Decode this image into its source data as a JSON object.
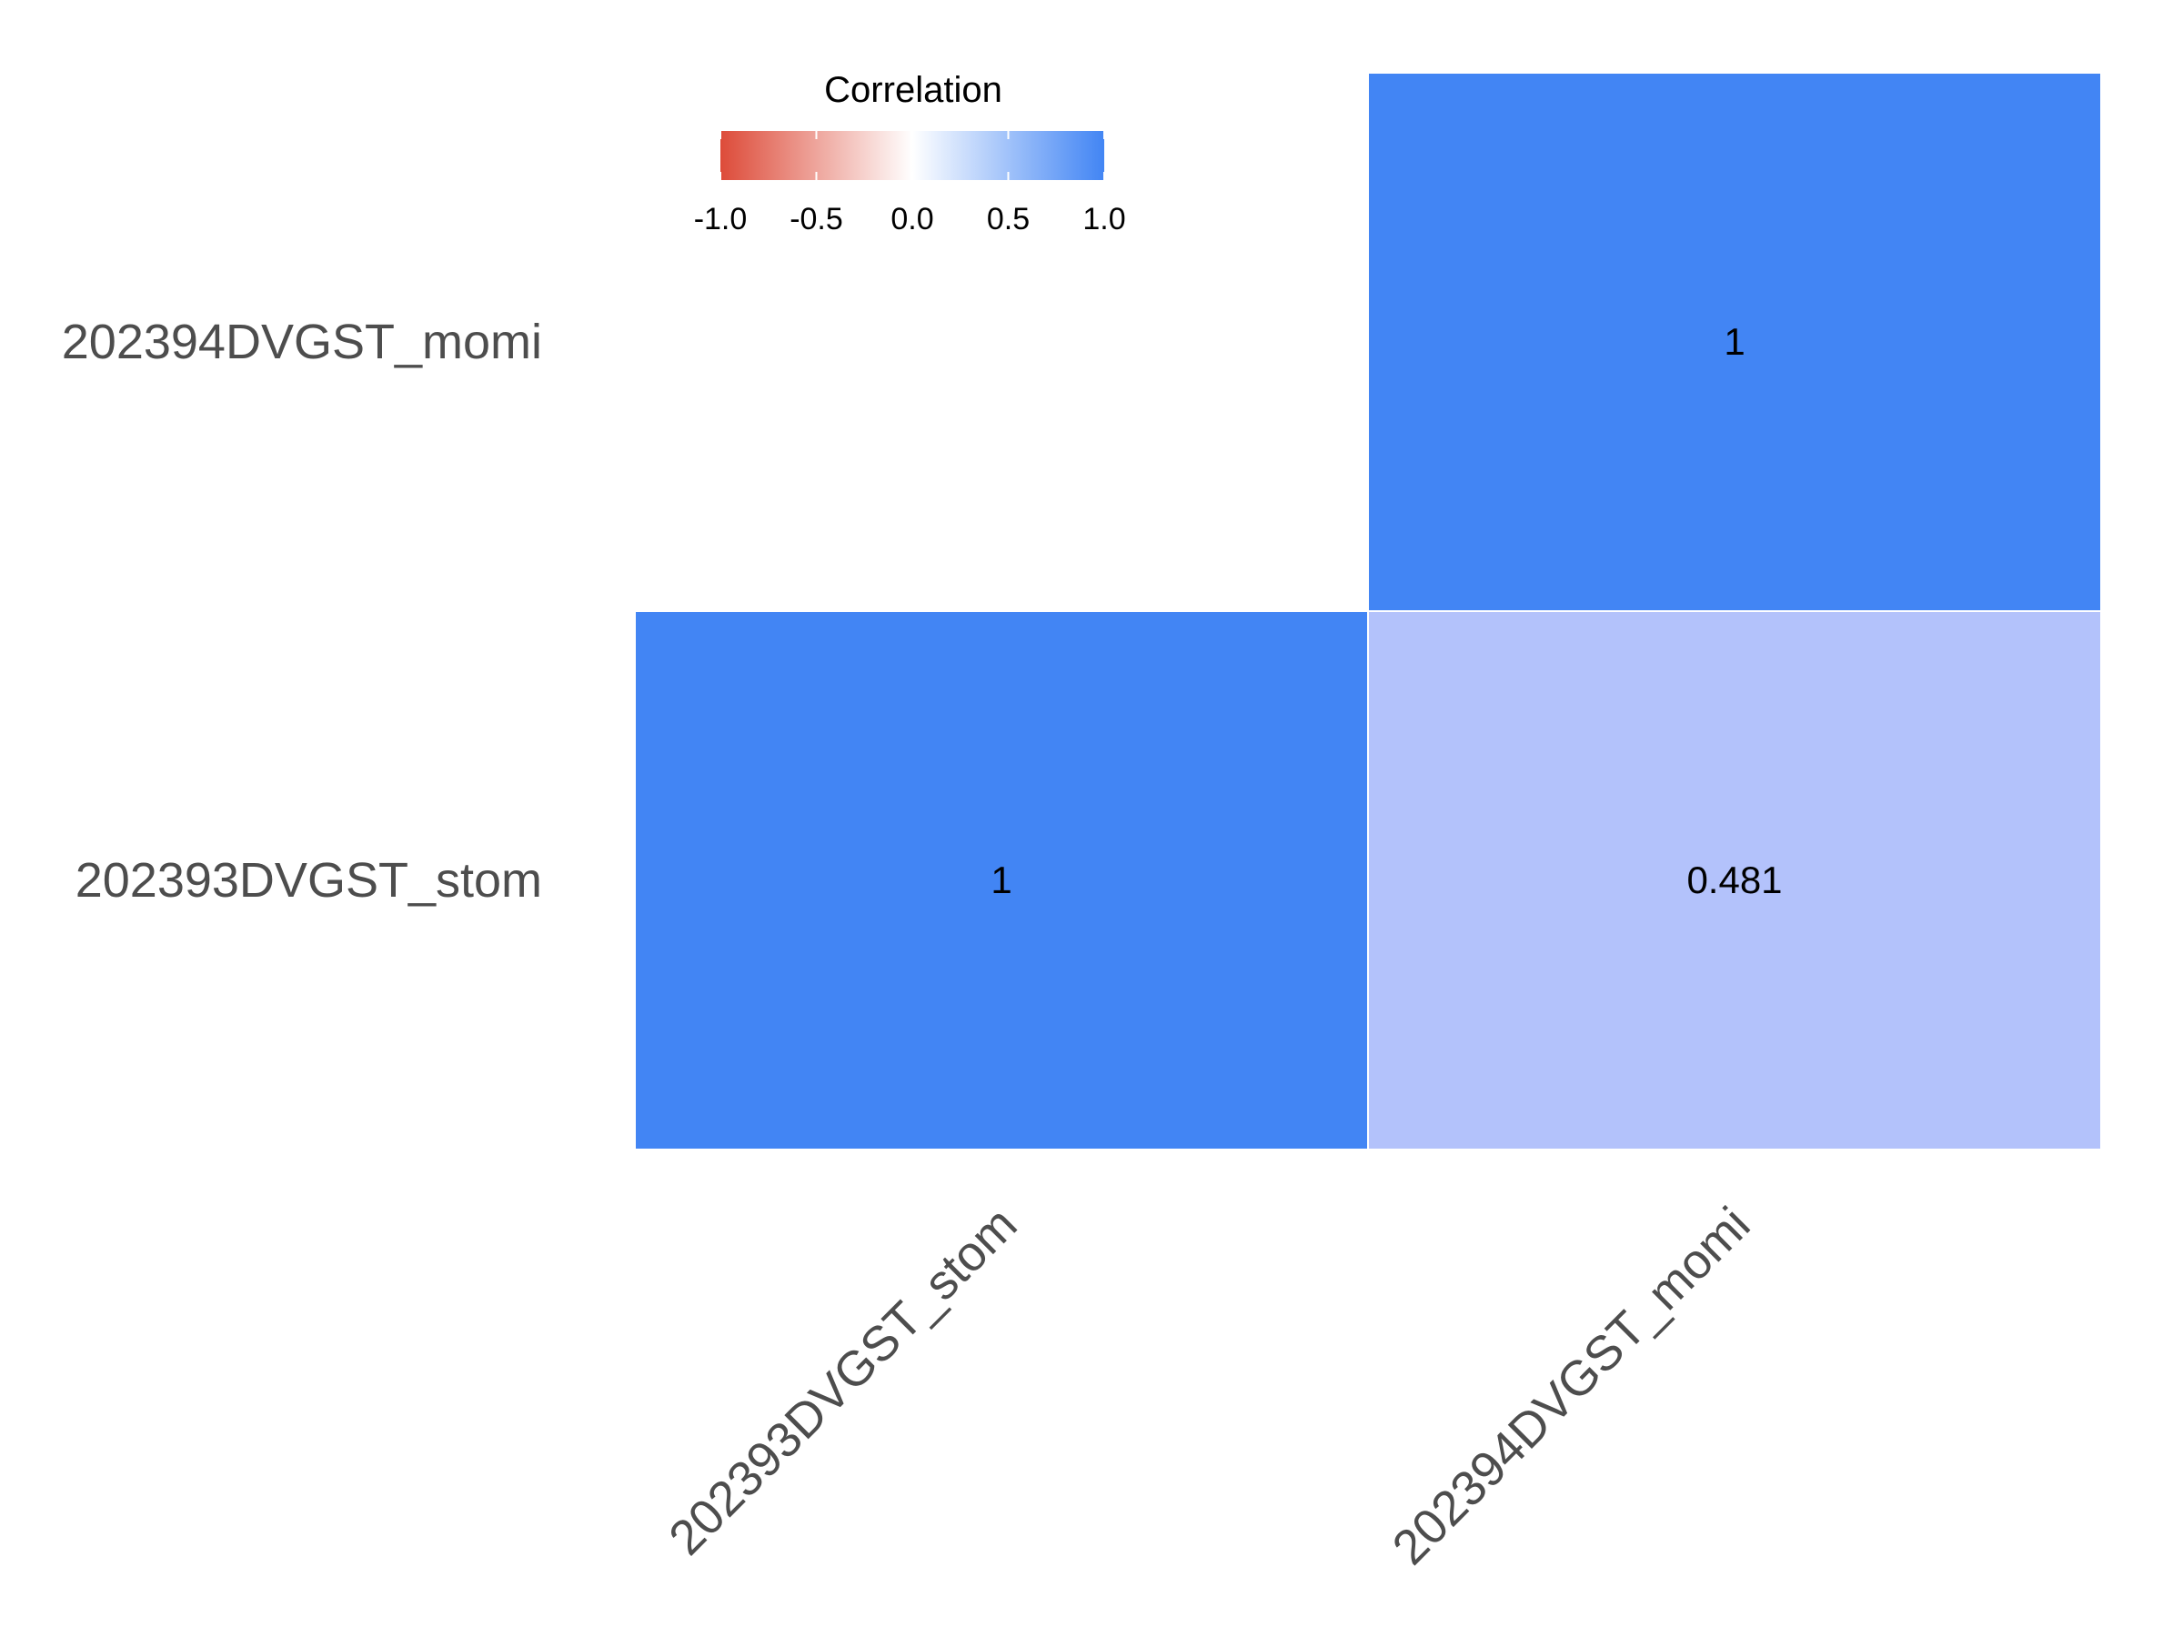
{
  "chart_data": {
    "type": "heatmap",
    "x_categories": [
      "202393DVGST_stom",
      "202394DVGST_momi"
    ],
    "y_categories": [
      "202394DVGST_momi",
      "202393DVGST_stom"
    ],
    "cells": [
      {
        "x": "202394DVGST_momi",
        "y": "202394DVGST_momi",
        "value": 1,
        "label": "1"
      },
      {
        "x": "202393DVGST_stom",
        "y": "202393DVGST_stom",
        "value": 1,
        "label": "1"
      },
      {
        "x": "202394DVGST_momi",
        "y": "202393DVGST_stom",
        "value": 0.481,
        "label": "0.481"
      }
    ],
    "legend": {
      "title": "Correlation",
      "ticks": [
        "-1.0",
        "-0.5",
        "0.0",
        "0.5",
        "1.0"
      ],
      "range": [
        -1,
        1
      ],
      "placement": "top"
    },
    "colors": {
      "low": "#DD4B39",
      "mid": "#FFFFFF",
      "high": "#4285F4"
    }
  }
}
